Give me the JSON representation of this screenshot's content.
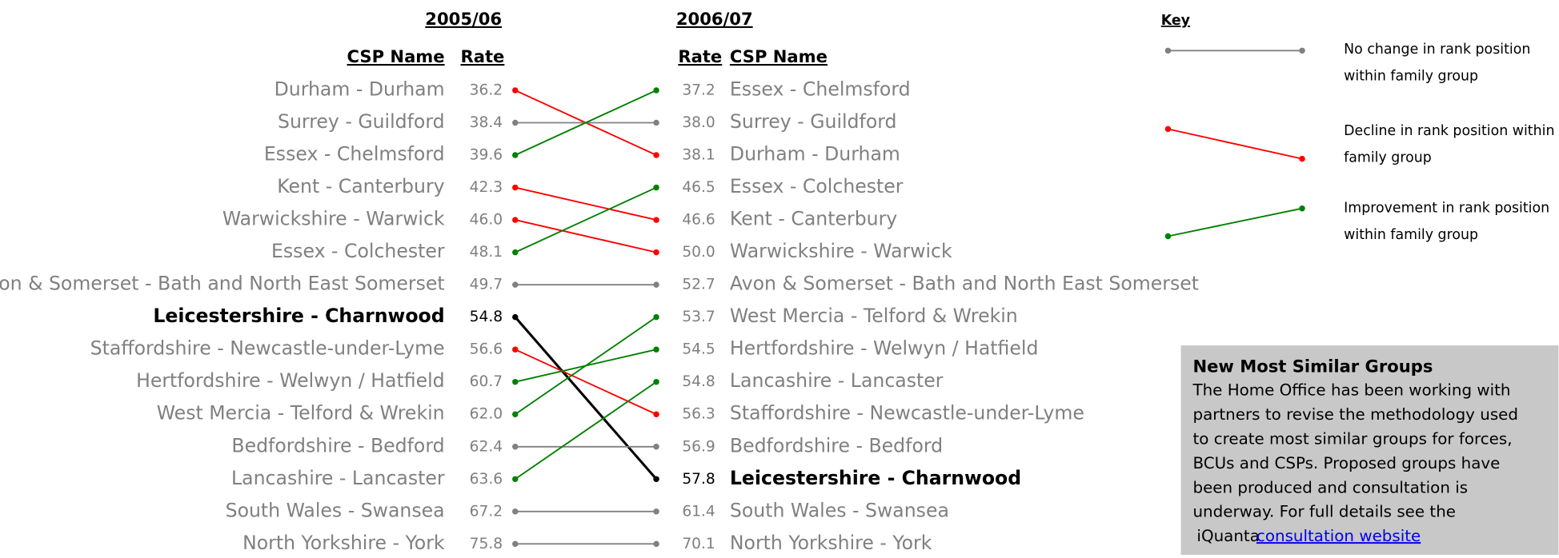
{
  "chart_data": {
    "type": "slope",
    "left_title": "2005/06",
    "right_title": "2006/07",
    "name_header": "CSP Name",
    "rate_header": "Rate",
    "left": {
      "names": [
        "Durham - Durham",
        "Surrey - Guildford",
        "Essex - Chelmsford",
        "Kent - Canterbury",
        "Warwickshire - Warwick",
        "Essex - Colchester",
        "Avon & Somerset - Bath and North East Somerset",
        "Leicestershire - Charnwood",
        "Staffordshire - Newcastle-under-Lyme",
        "Hertfordshire - Welwyn / Hatfield",
        "West Mercia - Telford & Wrekin",
        "Bedfordshire - Bedford",
        "Lancashire - Lancaster",
        "South Wales - Swansea",
        "North Yorkshire - York"
      ],
      "values": [
        36.2,
        38.4,
        39.6,
        42.3,
        46,
        48.1,
        49.7,
        54.8,
        56.6,
        60.7,
        62,
        62.4,
        63.6,
        67.2,
        75.8
      ],
      "value_labels": [
        "36.2",
        "38.4",
        "39.6",
        "42.3",
        "46.0",
        "48.1",
        "49.7",
        "54.8",
        "56.6",
        "60.7",
        "62.0",
        "62.4",
        "63.6",
        "67.2",
        "75.8"
      ]
    },
    "right": {
      "names": [
        "Essex - Chelmsford",
        "Surrey - Guildford",
        "Durham - Durham",
        "Essex - Colchester",
        "Kent - Canterbury",
        "Warwickshire - Warwick",
        "Avon & Somerset - Bath and North East Somerset",
        "West Mercia - Telford & Wrekin",
        "Hertfordshire - Welwyn / Hatfield",
        "Lancashire - Lancaster",
        "Staffordshire - Newcastle-under-Lyme",
        "Bedfordshire - Bedford",
        "Leicestershire - Charnwood",
        "South Wales - Swansea",
        "North Yorkshire - York"
      ],
      "values": [
        37.2,
        38,
        38.1,
        46.5,
        46.6,
        50,
        52.7,
        53.7,
        54.5,
        54.8,
        56.3,
        56.9,
        57.8,
        61.4,
        70.1
      ],
      "value_labels": [
        "37.2",
        "38.0",
        "38.1",
        "46.5",
        "46.6",
        "50.0",
        "52.7",
        "53.7",
        "54.5",
        "54.8",
        "56.3",
        "56.9",
        "57.8",
        "61.4",
        "70.1"
      ]
    },
    "highlight": "Leicestershire - Charnwood",
    "highlight_color": "#000000",
    "key_title": "Key",
    "key": [
      {
        "lines": [
          "No change in rank position",
          "within family group"
        ],
        "color": "#808080"
      },
      {
        "lines": [
          "Decline in rank position within",
          "family group"
        ],
        "color": "#ff0000"
      },
      {
        "lines": [
          "Improvement in rank position",
          "within family group"
        ],
        "color": "#008000"
      }
    ]
  },
  "notice": {
    "title": "New Most Similar Groups",
    "lines": [
      "The Home Office has been working with",
      "partners to revise the methodology used",
      "to create most similar groups for forces,",
      "BCUs and CSPs. Proposed groups have",
      "been produced and consultation is",
      "underway. For full details see the"
    ],
    "link_prefix": "iQuanta",
    "link": "consultation website"
  }
}
